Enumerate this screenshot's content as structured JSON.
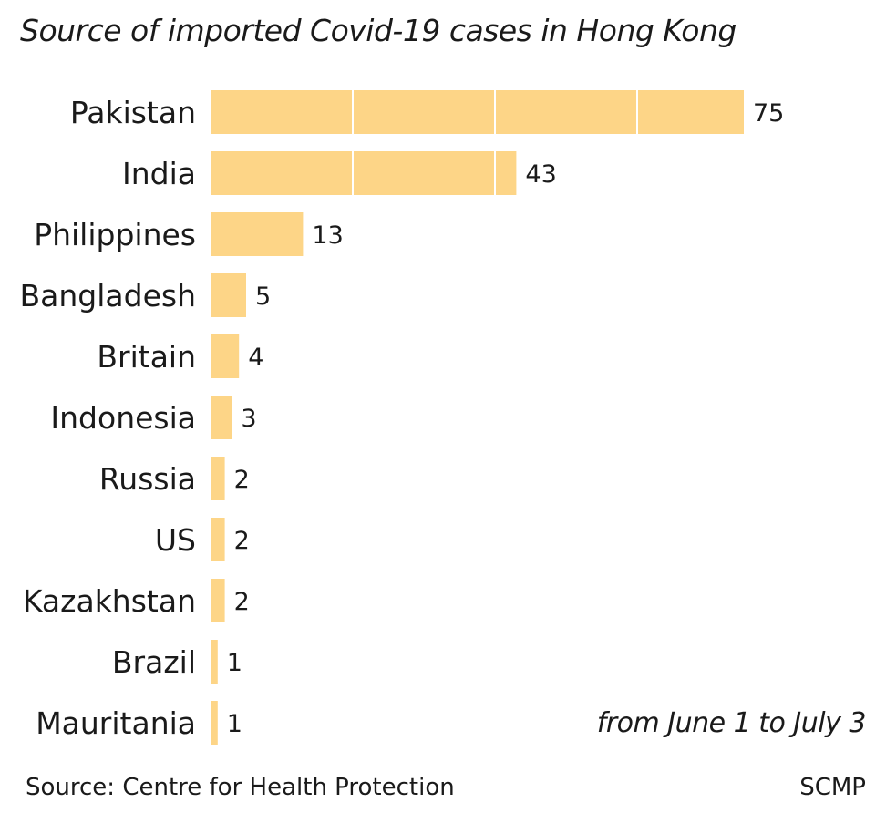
{
  "chart_data": {
    "type": "bar",
    "orientation": "horizontal",
    "title": "Source of imported Covid-19 cases in Hong Kong",
    "note": "from June 1 to July 3",
    "categories": [
      "Pakistan",
      "India",
      "Philippines",
      "Bangladesh",
      "Britain",
      "Indonesia",
      "Russia",
      "US",
      "Kazakhstan",
      "Brazil",
      "Mauritania"
    ],
    "values": [
      75,
      43,
      13,
      5,
      4,
      3,
      2,
      2,
      2,
      1,
      1
    ],
    "data_labels": [
      "75",
      "43",
      "13",
      "5",
      "4",
      "3",
      "2",
      "2",
      "2",
      "1",
      "1"
    ],
    "xlim": [
      0,
      75
    ],
    "grid": "vertical white lines inside bars every 20",
    "legend": "none",
    "bar_color": "#fdd587"
  },
  "footer": {
    "source": "Source: Centre for Health Protection",
    "credit": "SCMP"
  }
}
